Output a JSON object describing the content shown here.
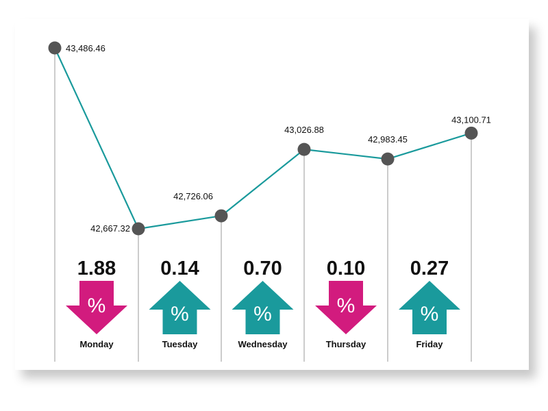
{
  "chart_data": {
    "type": "line",
    "categories": [
      "Monday",
      "Tuesday",
      "Wednesday",
      "Thursday",
      "Friday"
    ],
    "points": [
      {
        "label": "43,486.46",
        "value": 43486.46
      },
      {
        "label": "42,667.32",
        "value": 42667.32
      },
      {
        "label": "42,726.06",
        "value": 42726.06
      },
      {
        "label": "43,026.88",
        "value": 43026.88
      },
      {
        "label": "42,983.45",
        "value": 42983.45
      },
      {
        "label": "43,100.71",
        "value": 43100.71
      }
    ],
    "changes": [
      {
        "day": "Monday",
        "value": "1.88",
        "direction": "down"
      },
      {
        "day": "Tuesday",
        "value": "0.14",
        "direction": "up"
      },
      {
        "day": "Wednesday",
        "value": "0.70",
        "direction": "up"
      },
      {
        "day": "Thursday",
        "value": "0.10",
        "direction": "down"
      },
      {
        "day": "Friday",
        "value": "0.27",
        "direction": "up"
      }
    ],
    "percent_symbol": "%",
    "colors": {
      "line": "#1a9a9c",
      "marker": "#555555",
      "gridline": "#999999",
      "up": "#1a9a9c",
      "down": "#d21b7e"
    }
  }
}
